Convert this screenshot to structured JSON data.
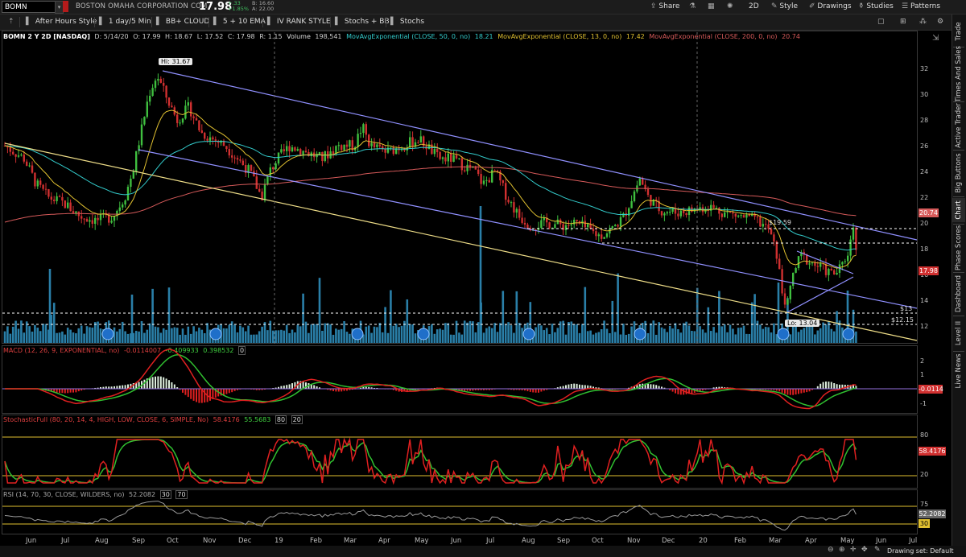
{
  "header": {
    "symbol": "BOMN",
    "company": "BOSTON OMAHA CORPORATION COM",
    "last": "17.98",
    "change": "+.33",
    "change_pct": "+1.85%",
    "bid": "B: 16.60",
    "ask": "A: 22.00",
    "share_label": "Share",
    "mode_2d": "2D",
    "style_label": "Style",
    "drawings_label": "Drawings",
    "studies_label": "Studies",
    "patterns_label": "Patterns"
  },
  "toolbar": {
    "items": [
      "After Hours Style",
      "1 day/5 Min",
      "BB+ CLOUD",
      "5 + 10 EMA",
      "IV RANK STYLE",
      "Stochs + BB",
      "Stochs"
    ]
  },
  "sidebar": {
    "tabs": [
      "Trade",
      "Times And Sales",
      "Active Trader",
      "Big Buttons",
      "Chart",
      "Phase Scores",
      "Dashboard",
      "Level II",
      "Live News"
    ]
  },
  "price_pane": {
    "title": "BOMN 2 Y 2D [NASDAQ]",
    "ohlc": [
      "D: 5/14/20",
      "O: 17.99",
      "H: 18.67",
      "L: 17.52",
      "C: 17.98",
      "R: 1.15"
    ],
    "volume_label": "Volume",
    "volume_value": "198,541",
    "ma50_label": "MovAvgExponential (CLOSE, 50, 0, no)",
    "ma50_value": "18.21",
    "ma13_label": "MovAvgExponential (CLOSE, 13, 0, no)",
    "ma13_value": "17.42",
    "ma200_label": "MovAvgExponential (CLOSE, 200, 0, no)",
    "ma200_value": "20.74",
    "hi_label": "Hi: 31.67",
    "lo_label": "Lo: 13.04",
    "level_1959": "$19.59",
    "level_13": "$13",
    "level_1215": "$12.15",
    "axis": [
      "32",
      "30",
      "28",
      "26",
      "24",
      "22",
      "20",
      "18",
      "16",
      "14",
      "12"
    ],
    "last_box": "17.98",
    "ma200_box": "20.74",
    "colors": {
      "ma50": "#33cccc",
      "ma13": "#e0c030",
      "ma200": "#d65a5a",
      "channel": "#8f8fff",
      "trend": "#eedd88",
      "volume": "#2a7fa8"
    }
  },
  "macd_pane": {
    "label": "MACD (12, 26, 9, EXPONENTIAL, no)",
    "v1": "-0.0114007",
    "v2": "-0.409933",
    "v3": "0.398532",
    "v4": "0",
    "axis": [
      "2",
      "1",
      "-1"
    ],
    "box": "-0.0114"
  },
  "stoch_pane": {
    "label": "StochasticFull (80, 20, 14, 4, HIGH, LOW, CLOSE, 6, SIMPLE, No)",
    "v1": "58.4176",
    "v2": "55.5683",
    "v3": "80",
    "v4": "20",
    "axis_80": "80",
    "axis_20": "20",
    "box": "58.4176"
  },
  "rsi_pane": {
    "label": "RSI (14, 70, 30, CLOSE, WILDERS, no)",
    "v1": "52.2082",
    "v2": "30",
    "v3": "70",
    "axis_75": "75",
    "axis_30": "30",
    "box": "52.2082"
  },
  "x_axis": {
    "months": [
      "Jun",
      "Jul",
      "Aug",
      "Sep",
      "Oct",
      "Nov",
      "Dec",
      "19",
      "Feb",
      "Mar",
      "Apr",
      "May",
      "Jun",
      "Jul",
      "Aug",
      "Sep",
      "Oct",
      "Nov",
      "Dec",
      "20",
      "Feb",
      "Mar",
      "Apr",
      "May",
      "Jun",
      "Jul"
    ]
  },
  "status": {
    "drawing_set": "Drawing set: Default"
  }
}
